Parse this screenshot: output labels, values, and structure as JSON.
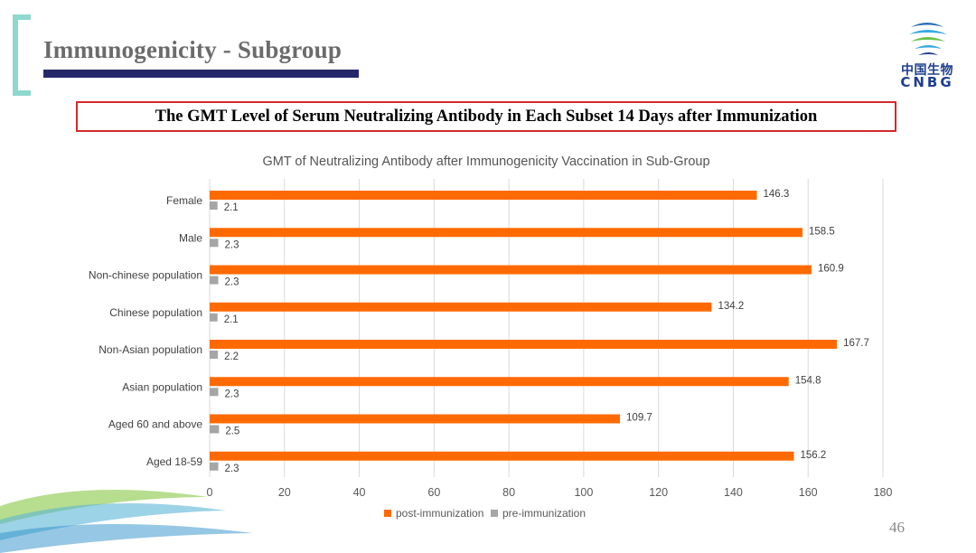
{
  "slide": {
    "title": "Immunogenicity - Subgroup",
    "subtitle": "The GMT Level of Serum Neutralizing Antibody in Each Subset 14 Days after Immunization",
    "page_number": "46"
  },
  "logo": {
    "name_cn": "中国生物",
    "name_en": "CNBG"
  },
  "colors": {
    "post": "#ff6a00",
    "pre": "#a6a6a6",
    "title_bar": "#24286b",
    "bracket": "#8fd8d0",
    "subtitle_border": "#d42b2b"
  },
  "chart_data": {
    "type": "bar",
    "orientation": "horizontal",
    "title": "GMT of Neutralizing Antibody after Immunogenicity Vaccination in Sub-Group",
    "categories": [
      "Female",
      "Male",
      "Non-chinese population",
      "Chinese population",
      "Non-Asian population",
      "Asian population",
      "Aged 60 and above",
      "Aged 18-59"
    ],
    "series": [
      {
        "name": "post-immunization",
        "color": "#ff6a00",
        "values": [
          146.3,
          158.5,
          160.9,
          134.2,
          167.7,
          154.8,
          109.7,
          156.2
        ]
      },
      {
        "name": "pre-immunization",
        "color": "#a6a6a6",
        "values": [
          2.1,
          2.3,
          2.3,
          2.1,
          2.2,
          2.3,
          2.5,
          2.3
        ]
      }
    ],
    "xlim": [
      0,
      180
    ],
    "xticks": [
      0,
      20,
      40,
      60,
      80,
      100,
      120,
      140,
      160,
      180
    ],
    "grid": true,
    "legend": "bottom"
  }
}
